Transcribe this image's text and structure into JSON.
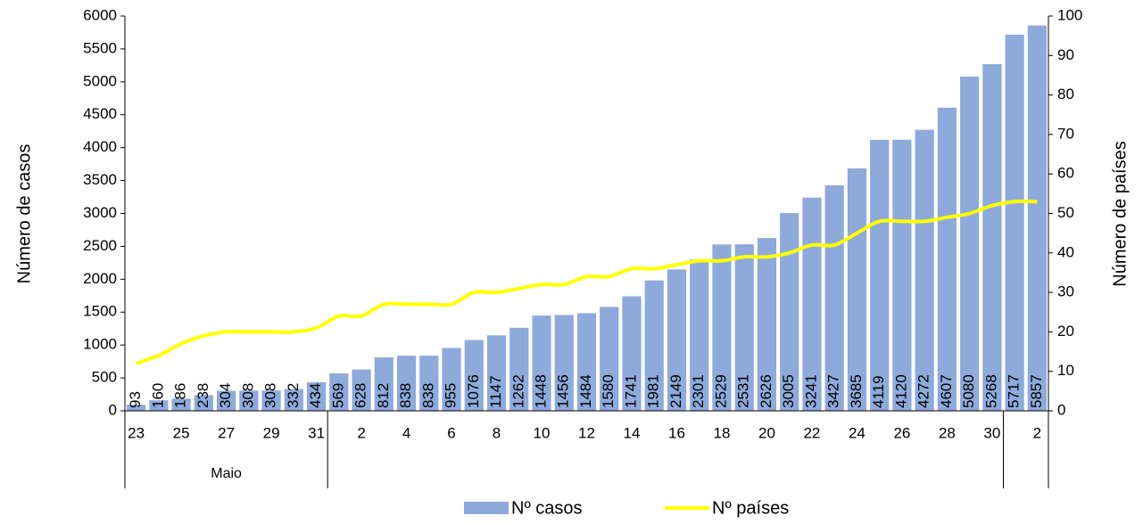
{
  "chart_data": {
    "type": "bar+line",
    "ylabel": "Número de casos",
    "y2label": "Número de países",
    "categories": [
      "23",
      null,
      "25",
      null,
      "27",
      null,
      "29",
      null,
      "31",
      null,
      "2",
      null,
      "4",
      null,
      "6",
      null,
      "8",
      null,
      "10",
      null,
      "12",
      null,
      "14",
      null,
      "16",
      null,
      "18",
      null,
      "20",
      null,
      "22",
      null,
      "24",
      null,
      "26",
      null,
      "28",
      null,
      "30",
      null,
      "2"
    ],
    "groups": [
      {
        "label": "Maio",
        "size": 9
      },
      {
        "label": null,
        "size": 30
      },
      {
        "label": null,
        "size": 2
      }
    ],
    "series": [
      {
        "name": "Nº casos",
        "type": "bar",
        "color": "#8eaadb",
        "values": [
          93,
          160,
          186,
          238,
          304,
          308,
          308,
          332,
          434,
          569,
          628,
          812,
          838,
          838,
          955,
          1076,
          1147,
          1262,
          1448,
          1456,
          1484,
          1580,
          1741,
          1981,
          2149,
          2301,
          2529,
          2531,
          2626,
          3005,
          3241,
          3427,
          3685,
          4119,
          4120,
          4272,
          4607,
          5080,
          5268,
          5717,
          5857
        ]
      },
      {
        "name": "Nº países",
        "type": "line",
        "axis": "y2",
        "color": "#ffff00",
        "values": [
          12,
          14,
          17,
          19,
          20,
          20,
          20,
          20,
          21,
          24,
          24,
          27,
          27,
          27,
          27,
          30,
          30,
          31,
          32,
          32,
          34,
          34,
          36,
          36,
          37,
          38,
          38,
          39,
          39,
          40,
          42,
          42,
          45,
          48,
          48,
          48,
          49,
          50,
          52,
          53,
          53
        ]
      }
    ],
    "ylim": [
      0,
      6000
    ],
    "yticks": [
      0,
      500,
      1000,
      1500,
      2000,
      2500,
      3000,
      3500,
      4000,
      4500,
      5000,
      5500,
      6000
    ],
    "y2lim": [
      0,
      100
    ],
    "y2ticks": [
      0,
      10,
      20,
      30,
      40,
      50,
      60,
      70,
      80,
      90,
      100
    ],
    "legend": "bottom"
  }
}
